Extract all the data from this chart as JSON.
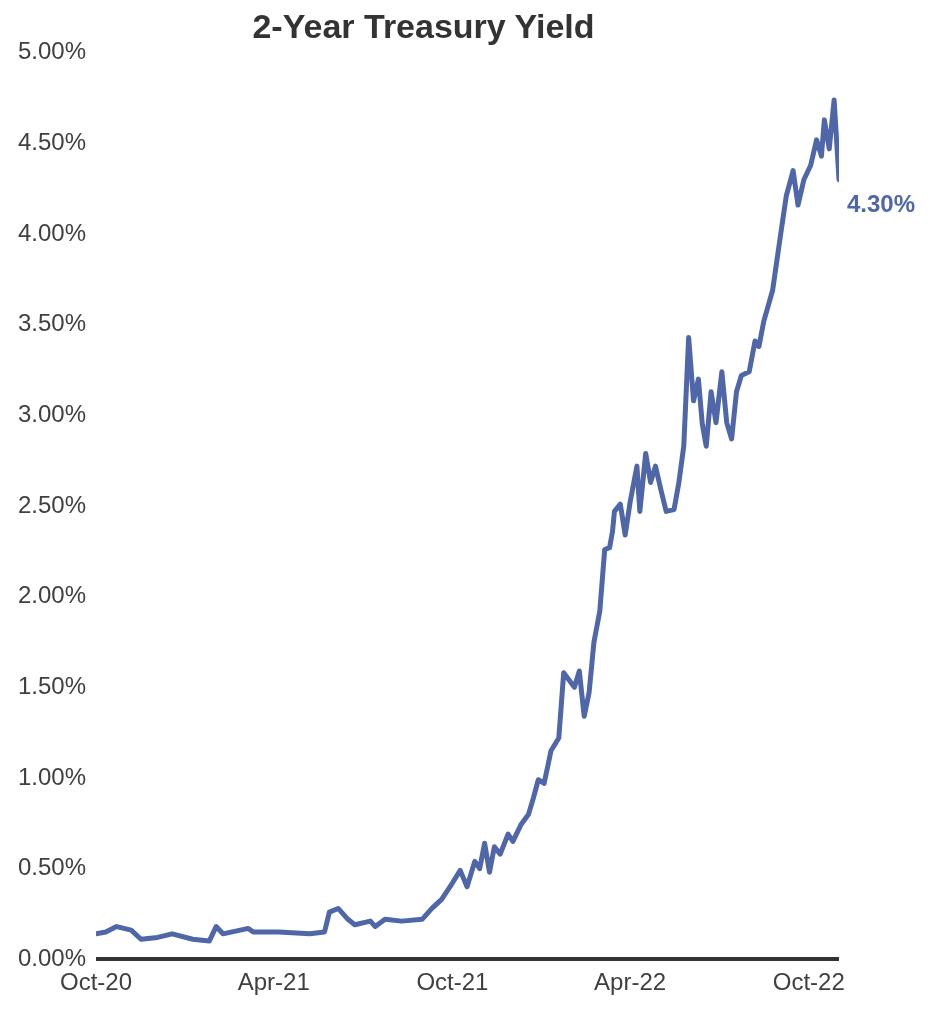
{
  "chart_data": {
    "type": "line",
    "title": "2-Year Treasury Yield",
    "x": [
      "2020-10-01",
      "2020-10-11",
      "2020-10-22",
      "2020-11-06",
      "2020-11-16",
      "2020-12-03",
      "2020-12-18",
      "2021-01-08",
      "2021-01-25",
      "2021-02-01",
      "2021-02-08",
      "2021-03-06",
      "2021-03-11",
      "2021-04-06",
      "2021-05-08",
      "2021-05-23",
      "2021-05-28",
      "2021-06-06",
      "2021-06-16",
      "2021-06-23",
      "2021-07-09",
      "2021-07-14",
      "2021-07-24",
      "2021-08-10",
      "2021-08-31",
      "2021-09-10",
      "2021-09-20",
      "2021-10-01",
      "2021-10-09",
      "2021-10-16",
      "2021-10-24",
      "2021-10-29",
      "2021-11-03",
      "2021-11-08",
      "2021-11-13",
      "2021-11-19",
      "2021-11-27",
      "2021-12-02",
      "2021-12-10",
      "2021-12-18",
      "2021-12-23",
      "2021-12-28",
      "2022-01-03",
      "2022-01-10",
      "2022-01-18",
      "2022-01-23",
      "2022-02-03",
      "2022-02-08",
      "2022-02-13",
      "2022-02-18",
      "2022-02-23",
      "2022-03-01",
      "2022-03-06",
      "2022-03-11",
      "2022-03-14",
      "2022-03-16",
      "2022-03-22",
      "2022-03-27",
      "2022-04-01",
      "2022-04-08",
      "2022-04-11",
      "2022-04-17",
      "2022-04-22",
      "2022-04-27",
      "2022-05-03",
      "2022-05-08",
      "2022-05-16",
      "2022-05-21",
      "2022-05-26",
      "2022-05-31",
      "2022-06-05",
      "2022-06-10",
      "2022-06-14",
      "2022-06-18",
      "2022-06-23",
      "2022-06-28",
      "2022-07-04",
      "2022-07-09",
      "2022-07-14",
      "2022-07-19",
      "2022-07-24",
      "2022-08-01",
      "2022-08-07",
      "2022-08-11",
      "2022-08-16",
      "2022-08-25",
      "2022-09-02",
      "2022-09-08",
      "2022-09-15",
      "2022-09-20",
      "2022-09-26",
      "2022-10-03",
      "2022-10-09",
      "2022-10-14",
      "2022-10-17",
      "2022-10-22",
      "2022-10-27",
      "2022-11-01"
    ],
    "series": [
      {
        "color": "#4f67a8",
        "values": [
          0.14,
          0.15,
          0.18,
          0.16,
          0.11,
          0.12,
          0.14,
          0.11,
          0.1,
          0.18,
          0.14,
          0.17,
          0.15,
          0.15,
          0.14,
          0.15,
          0.26,
          0.28,
          0.22,
          0.19,
          0.21,
          0.18,
          0.22,
          0.21,
          0.22,
          0.28,
          0.33,
          0.42,
          0.49,
          0.4,
          0.54,
          0.5,
          0.64,
          0.48,
          0.62,
          0.58,
          0.69,
          0.65,
          0.74,
          0.8,
          0.89,
          0.99,
          0.97,
          1.15,
          1.22,
          1.58,
          1.5,
          1.59,
          1.34,
          1.47,
          1.75,
          1.92,
          2.26,
          2.27,
          2.36,
          2.47,
          2.51,
          2.34,
          2.52,
          2.72,
          2.47,
          2.79,
          2.63,
          2.72,
          2.58,
          2.47,
          2.48,
          2.63,
          2.83,
          3.43,
          3.08,
          3.2,
          2.95,
          2.83,
          3.13,
          2.96,
          3.24,
          2.96,
          2.87,
          3.13,
          3.22,
          3.24,
          3.41,
          3.38,
          3.52,
          3.69,
          3.99,
          4.21,
          4.35,
          4.16,
          4.3,
          4.38,
          4.52,
          4.43,
          4.63,
          4.47,
          4.74,
          4.3
        ]
      }
    ],
    "xlim": [
      "2020-10-01",
      "2022-11-01"
    ],
    "xticks": [
      {
        "value": "2020-10-01",
        "label": "Oct-20"
      },
      {
        "value": "2021-04-01",
        "label": "Apr-21"
      },
      {
        "value": "2021-10-01",
        "label": "Oct-21"
      },
      {
        "value": "2022-04-01",
        "label": "Apr-22"
      },
      {
        "value": "2022-10-01",
        "label": "Oct-22"
      }
    ],
    "ylim": [
      0,
      5
    ],
    "yticks": [
      {
        "value": 0,
        "label": "0.00%"
      },
      {
        "value": 0.5,
        "label": "0.50%"
      },
      {
        "value": 1,
        "label": "1.00%"
      },
      {
        "value": 1.5,
        "label": "1.50%"
      },
      {
        "value": 2,
        "label": "2.00%"
      },
      {
        "value": 2.5,
        "label": "2.50%"
      },
      {
        "value": 3,
        "label": "3.00%"
      },
      {
        "value": 3.5,
        "label": "3.50%"
      },
      {
        "value": 4,
        "label": "4.00%"
      },
      {
        "value": 4.5,
        "label": "4.50%"
      },
      {
        "value": 5,
        "label": "5.00%"
      }
    ],
    "annotations": [
      {
        "text": "4.30%",
        "x": "2022-11-01",
        "y": 4.3
      }
    ],
    "grid": false,
    "legend": false,
    "marker": "none",
    "line_style": "solid"
  }
}
